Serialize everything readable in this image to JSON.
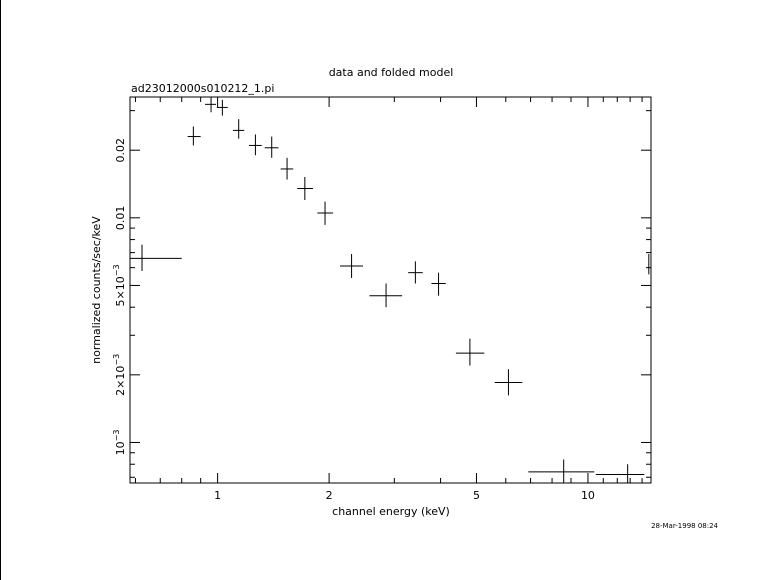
{
  "chart_data": {
    "type": "scatter",
    "title": "data and folded model",
    "subtitle": "ad23012000s010212_1.pi",
    "xlabel": "channel energy (keV)",
    "ylabel": "normalized counts/sec/keV",
    "timestamp": "28-Mar-1998 08:24",
    "xscale": "log",
    "yscale": "log",
    "xlim": [
      0.58,
      14.8
    ],
    "ylim": [
      0.00066,
      0.0345
    ],
    "x_ticks": [
      {
        "value": 1,
        "label": "1"
      },
      {
        "value": 2,
        "label": "2"
      },
      {
        "value": 5,
        "label": "5"
      },
      {
        "value": 10,
        "label": "10"
      }
    ],
    "y_ticks": [
      {
        "value": 0.001,
        "label": "10",
        "exp": "−3"
      },
      {
        "value": 0.002,
        "label": "2×10",
        "exp": "−3"
      },
      {
        "value": 0.005,
        "label": "5×10",
        "exp": "−3"
      },
      {
        "value": 0.01,
        "label": "0.01",
        "exp": ""
      },
      {
        "value": 0.02,
        "label": "0.02",
        "exp": ""
      }
    ],
    "series": [
      {
        "points": [
          {
            "x": 0.625,
            "xlo": 0.58,
            "xhi": 0.8,
            "y": 0.0066,
            "ylo": 0.0058,
            "yhi": 0.0076
          },
          {
            "x": 0.86,
            "xlo": 0.83,
            "xhi": 0.9,
            "y": 0.023,
            "ylo": 0.021,
            "yhi": 0.0255
          },
          {
            "x": 0.96,
            "xlo": 0.925,
            "xhi": 0.99,
            "y": 0.032,
            "ylo": 0.0295,
            "yhi": 0.0345
          },
          {
            "x": 1.03,
            "xlo": 0.995,
            "xhi": 1.065,
            "y": 0.031,
            "ylo": 0.0285,
            "yhi": 0.0335
          },
          {
            "x": 1.14,
            "xlo": 1.1,
            "xhi": 1.18,
            "y": 0.0245,
            "ylo": 0.0225,
            "yhi": 0.0275
          },
          {
            "x": 1.265,
            "xlo": 1.215,
            "xhi": 1.315,
            "y": 0.021,
            "ylo": 0.019,
            "yhi": 0.0235
          },
          {
            "x": 1.4,
            "xlo": 1.34,
            "xhi": 1.46,
            "y": 0.0205,
            "ylo": 0.0185,
            "yhi": 0.023
          },
          {
            "x": 1.54,
            "xlo": 1.48,
            "xhi": 1.6,
            "y": 0.0165,
            "ylo": 0.0148,
            "yhi": 0.0185
          },
          {
            "x": 1.72,
            "xlo": 1.64,
            "xhi": 1.81,
            "y": 0.0135,
            "ylo": 0.012,
            "yhi": 0.0152
          },
          {
            "x": 1.95,
            "xlo": 1.86,
            "xhi": 2.05,
            "y": 0.0105,
            "ylo": 0.0093,
            "yhi": 0.0118
          },
          {
            "x": 2.3,
            "xlo": 2.14,
            "xhi": 2.47,
            "y": 0.0061,
            "ylo": 0.0054,
            "yhi": 0.0069
          },
          {
            "x": 2.85,
            "xlo": 2.57,
            "xhi": 3.15,
            "y": 0.0045,
            "ylo": 0.004,
            "yhi": 0.0051
          },
          {
            "x": 3.42,
            "xlo": 3.27,
            "xhi": 3.58,
            "y": 0.0057,
            "ylo": 0.0051,
            "yhi": 0.0064
          },
          {
            "x": 3.95,
            "xlo": 3.78,
            "xhi": 4.13,
            "y": 0.0051,
            "ylo": 0.0045,
            "yhi": 0.0057
          },
          {
            "x": 4.8,
            "xlo": 4.4,
            "xhi": 5.25,
            "y": 0.0025,
            "ylo": 0.0022,
            "yhi": 0.0029
          },
          {
            "x": 6.1,
            "xlo": 5.6,
            "xhi": 6.65,
            "y": 0.00185,
            "ylo": 0.00162,
            "yhi": 0.00212
          },
          {
            "x": 8.6,
            "xlo": 6.9,
            "xhi": 10.4,
            "y": 0.00074,
            "ylo": 0.00066,
            "yhi": 0.00084
          },
          {
            "x": 12.8,
            "xlo": 10.5,
            "xhi": 14.2,
            "y": 0.00072,
            "ylo": 0.00066,
            "yhi": 0.0008
          },
          {
            "x": 14.6,
            "xlo": 14.58,
            "xhi": 14.62,
            "y": 0.0062,
            "ylo": 0.0056,
            "yhi": 0.0069
          }
        ]
      }
    ]
  }
}
